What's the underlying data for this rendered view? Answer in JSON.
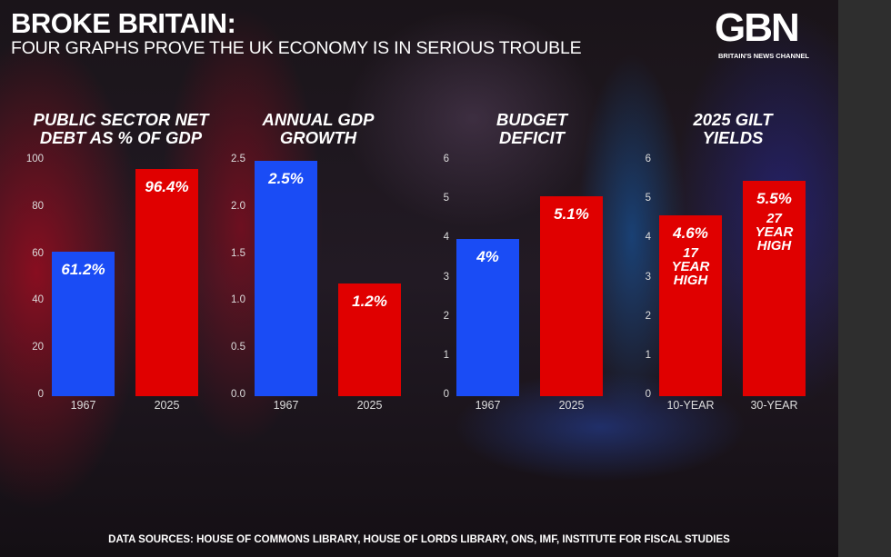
{
  "header": {
    "title": "BROKE BRITAIN:",
    "subtitle": "FOUR GRAPHS PROVE THE UK ECONOMY IS IN SERIOUS TROUBLE",
    "logo": "GBN",
    "tagline": "BRITAIN'S NEWS CHANNEL"
  },
  "footer": {
    "sources": "DATA SOURCES: HOUSE OF COMMONS LIBRARY, HOUSE OF LORDS LIBRARY, ONS, IMF, INSTITUTE FOR FISCAL STUDIES"
  },
  "colors": {
    "blue": "#1a4cf5",
    "red": "#e00000"
  },
  "chart_data": [
    {
      "type": "bar",
      "title": "PUBLIC SECTOR NET DEBT AS % OF GDP",
      "categories": [
        "1967",
        "2025"
      ],
      "values": [
        61.2,
        96.4
      ],
      "labels": [
        "61.2%",
        "96.4%"
      ],
      "bar_colors": [
        "blue",
        "red"
      ],
      "notes": [
        "",
        ""
      ],
      "ylim": [
        0,
        100
      ],
      "yticks": [
        "0",
        "20",
        "40",
        "60",
        "80",
        "100"
      ],
      "grid": false
    },
    {
      "type": "bar",
      "title": "ANNUAL GDP GROWTH",
      "categories": [
        "1967",
        "2025"
      ],
      "values": [
        2.5,
        1.2
      ],
      "labels": [
        "2.5%",
        "1.2%"
      ],
      "bar_colors": [
        "blue",
        "red"
      ],
      "notes": [
        "",
        ""
      ],
      "ylim": [
        0,
        2.5
      ],
      "yticks": [
        "0.0",
        "0.5",
        "1.0",
        "1.5",
        "2.0",
        "2.5"
      ],
      "grid": false
    },
    {
      "type": "bar",
      "title": "BUDGET DEFICIT",
      "categories": [
        "1967",
        "2025"
      ],
      "values": [
        4,
        5.1
      ],
      "labels": [
        "4%",
        "5.1%"
      ],
      "bar_colors": [
        "blue",
        "red"
      ],
      "notes": [
        "",
        ""
      ],
      "ylim": [
        0,
        6
      ],
      "yticks": [
        "0",
        "1",
        "2",
        "3",
        "4",
        "5",
        "6"
      ],
      "grid": false
    },
    {
      "type": "bar",
      "title": "2025 GILT YIELDS",
      "categories": [
        "10-YEAR",
        "30-YEAR"
      ],
      "values": [
        4.6,
        5.5
      ],
      "labels": [
        "4.6%",
        "5.5%"
      ],
      "bar_colors": [
        "red",
        "red"
      ],
      "notes": [
        "17 YEAR HIGH",
        "27 YEAR HIGH"
      ],
      "ylim": [
        0,
        6
      ],
      "yticks": [
        "0",
        "1",
        "2",
        "3",
        "4",
        "5",
        "6"
      ],
      "grid": false
    }
  ]
}
